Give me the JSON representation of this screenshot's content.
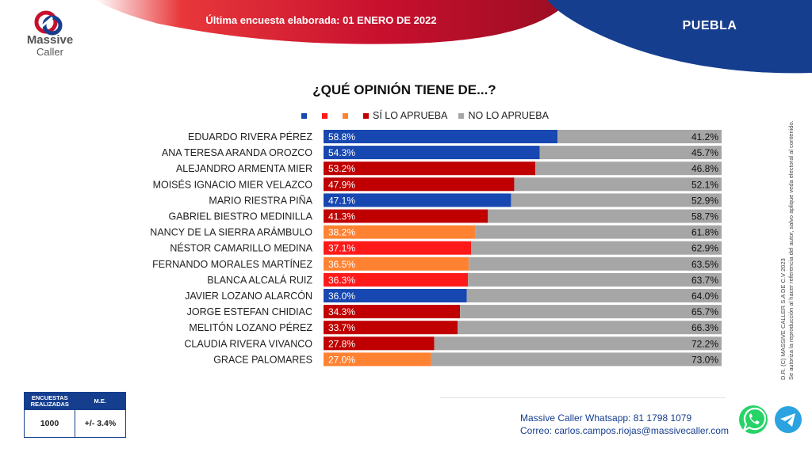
{
  "header": {
    "title": "Última encuesta elaborada: 01  ENERO  DE 2022",
    "state": "PUEBLA"
  },
  "logo": {
    "line1": "Massive",
    "line2": "Caller"
  },
  "colors": {
    "blue": "#1747b0",
    "red_dark": "#c00000",
    "red": "#ff1a1a",
    "orange": "#ff8232",
    "gray": "#a6a6a6",
    "navy": "#163e8f"
  },
  "legend": {
    "items": [
      {
        "label": "",
        "color": "#1747b0"
      },
      {
        "label": "",
        "color": "#ff1a1a"
      },
      {
        "label": "",
        "color": "#ff8232"
      },
      {
        "label": "SÍ LO APRUEBA",
        "color": "#c00000"
      },
      {
        "label": "NO LO APRUEBA",
        "color": "#a6a6a6"
      }
    ]
  },
  "chart_data": {
    "type": "bar",
    "orientation": "horizontal",
    "stacked": true,
    "title": "¿QUÉ OPINIÓN TIENE DE...?",
    "categories": [
      "EDUARDO RIVERA PÉREZ",
      "ANA TERESA ARANDA OROZCO",
      "ALEJANDRO ARMENTA MIER",
      "MOISÉS IGNACIO MIER VELAZCO",
      "MARIO RIESTRA PIÑA",
      "GABRIEL BIESTRO MEDINILLA",
      "NANCY DE LA SIERRA ARÁMBULO",
      "NÉSTOR CAMARILLO MEDINA",
      "FERNANDO MORALES MARTÍNEZ",
      "BLANCA ALCALÁ RUIZ",
      "JAVIER LOZANO ALARCÓN",
      "JORGE ESTEFAN CHIDIAC",
      "MELITÓN LOZANO PÉREZ",
      "CLAUDIA RIVERA VIVANCO",
      "GRACE PALOMARES"
    ],
    "series": [
      {
        "name": "SÍ LO APRUEBA",
        "values": [
          58.8,
          54.3,
          53.2,
          47.9,
          47.1,
          41.3,
          38.2,
          37.1,
          36.5,
          36.3,
          36.0,
          34.3,
          33.7,
          27.8,
          27.0
        ]
      },
      {
        "name": "NO LO APRUEBA",
        "values": [
          41.2,
          45.7,
          46.8,
          52.1,
          52.9,
          58.7,
          61.8,
          62.9,
          63.5,
          63.7,
          64.0,
          65.7,
          66.3,
          72.2,
          73.0
        ]
      }
    ],
    "approve_labels": [
      "58.8%",
      "54.3%",
      "53.2%",
      "47.9%",
      "47.1%",
      "41.3%",
      "38.2%",
      "37.1%",
      "36.5%",
      "36.3%",
      "36.0%",
      "34.3%",
      "33.7%",
      "27.8%",
      "27.0%"
    ],
    "disapprove_labels": [
      "41.2%",
      "45.7%",
      "46.8%",
      "52.1%",
      "52.9%",
      "58.7%",
      "61.8%",
      "62.9%",
      "63.5%",
      "63.7%",
      "64.0%",
      "65.7%",
      "66.3%",
      "72.2%",
      "73.0%"
    ],
    "bar_colors": [
      "#1747b0",
      "#1747b0",
      "#c00000",
      "#c00000",
      "#1747b0",
      "#c00000",
      "#ff8232",
      "#ff1a1a",
      "#ff8232",
      "#ff1a1a",
      "#1747b0",
      "#c00000",
      "#c00000",
      "#c00000",
      "#ff8232"
    ],
    "xlim": [
      0,
      100
    ],
    "grid": false,
    "legend_position": "top"
  },
  "survey_table": {
    "col1_header": "ENCUESTAS REALIZADAS",
    "col2_header": "M.E.",
    "col1_value": "1000",
    "col2_value": "+/- 3.4%"
  },
  "contact": {
    "whatsapp_label": "Massive Caller Whatsapp:",
    "whatsapp_number": "81 1798 1079",
    "email_label": "Correo:",
    "email": "carlos.campos.riojas@massivecaller.com"
  },
  "side_note": {
    "line1": "D.R. (C) MASSIVE CALLER S.A DE C.V 2023",
    "line2": "Se autoriza la reproducción al hacer referencia del autor, salvo aplique veda electoral al contenido."
  },
  "icons": [
    "whatsapp-icon",
    "telegram-icon"
  ]
}
